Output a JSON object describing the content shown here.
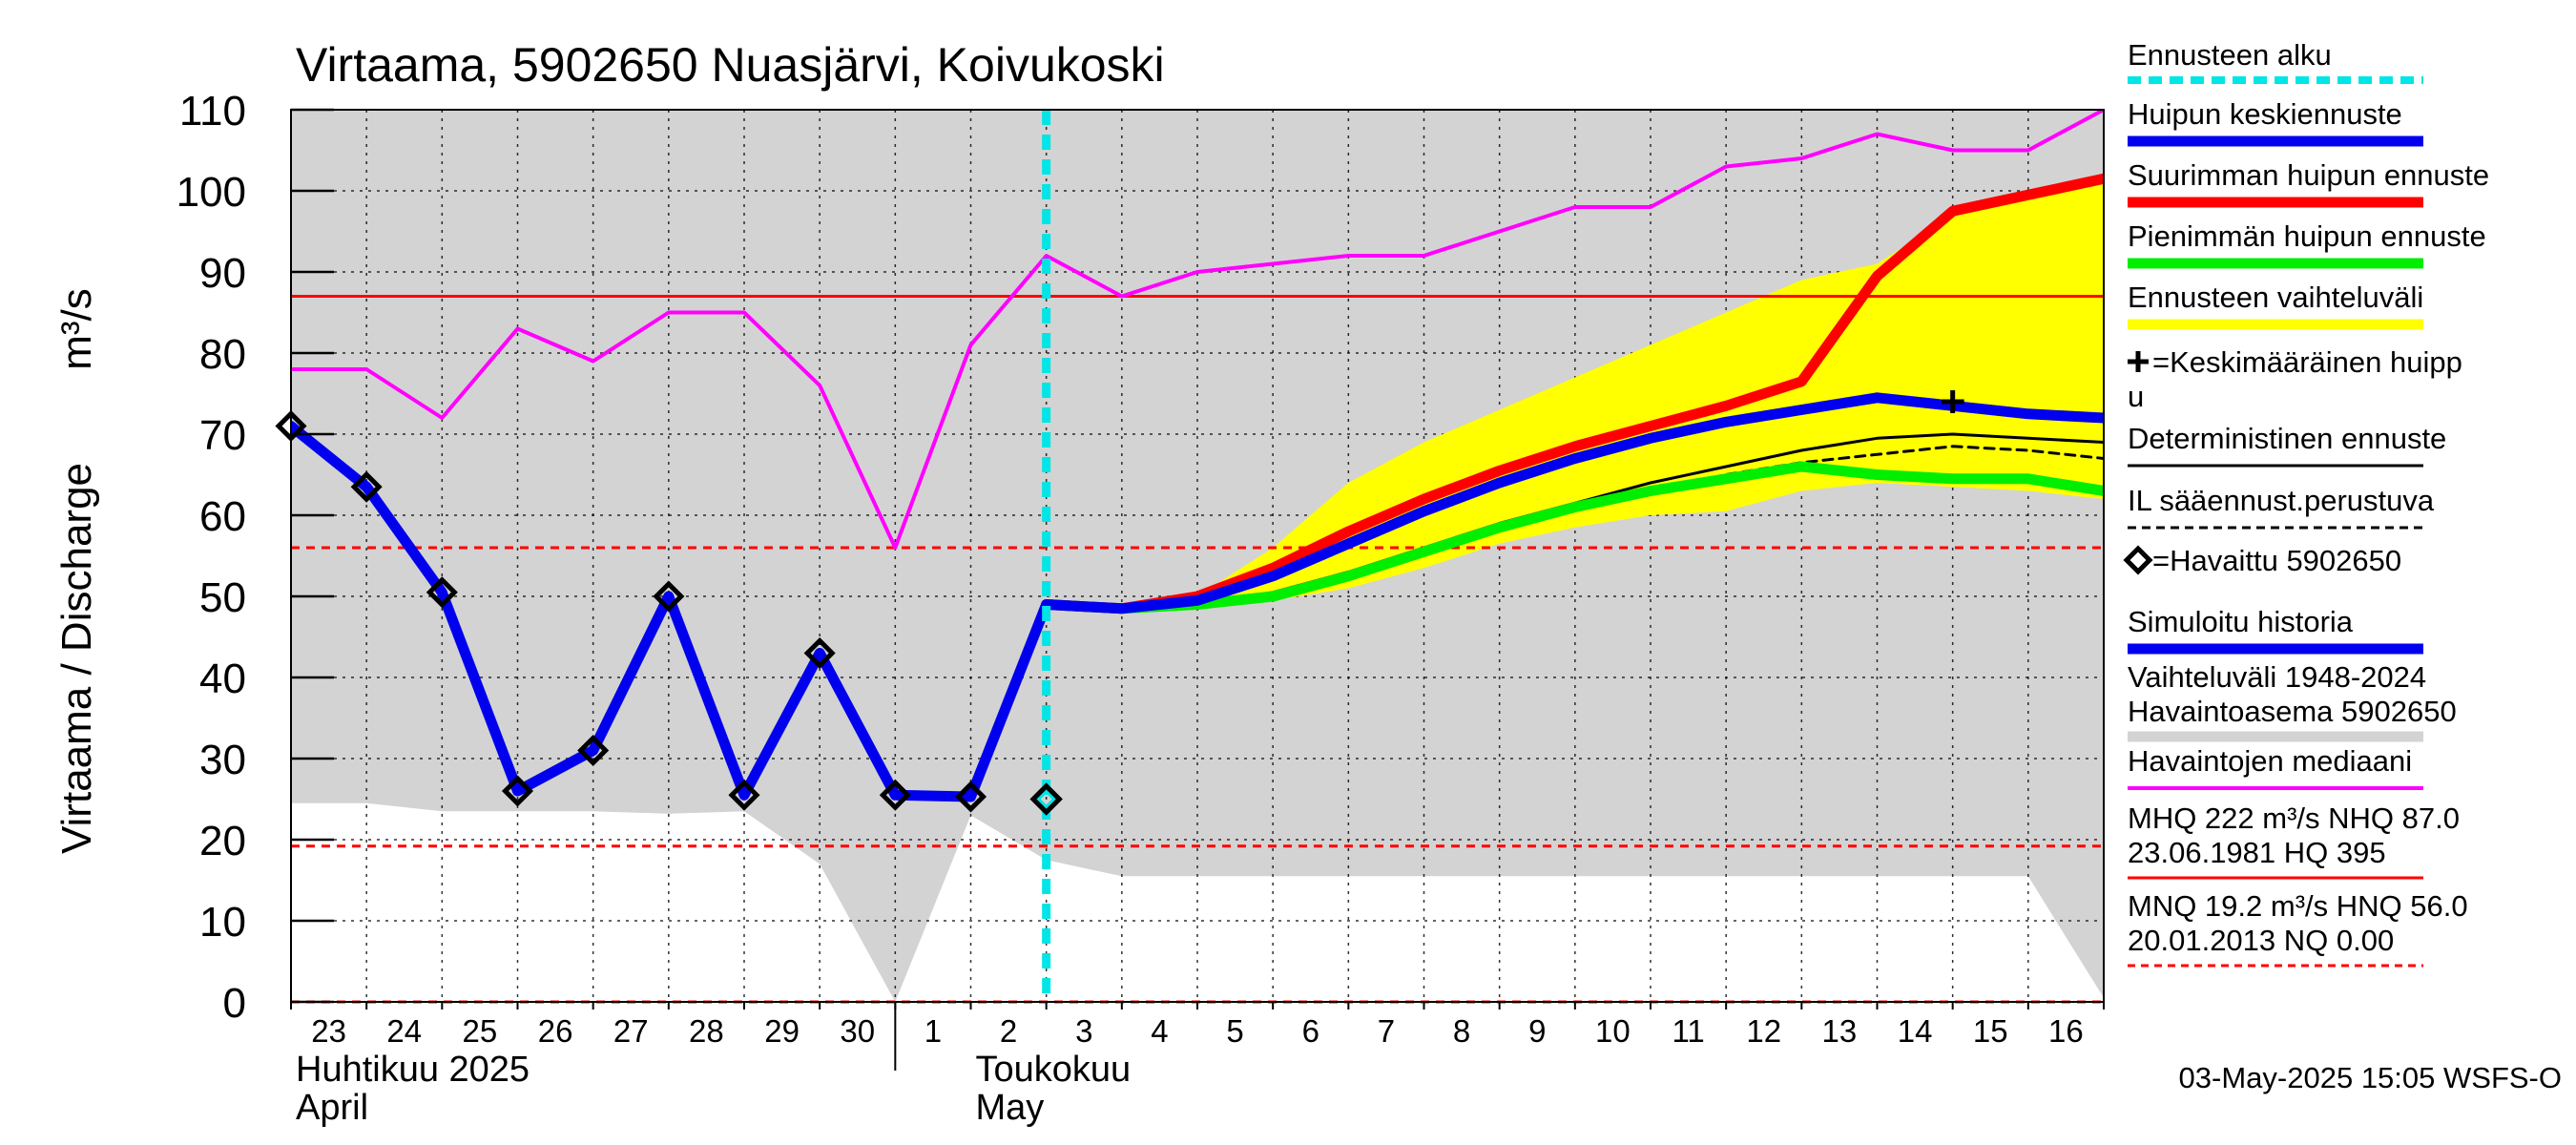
{
  "chart_data": {
    "type": "line",
    "title": "Virtaama, 5902650 Nuasjärvi, Koivukoski",
    "ylabel": "Virtaama / Discharge",
    "yunit": "m³/s",
    "ylim": [
      0,
      110
    ],
    "yticks": [
      0,
      10,
      20,
      30,
      40,
      50,
      60,
      70,
      80,
      90,
      100,
      110
    ],
    "xlim": [
      "2025-04-23",
      "2025-05-17"
    ],
    "day_labels": [
      {
        "date": "2025-04-23",
        "label": "23"
      },
      {
        "date": "2025-04-24",
        "label": "24"
      },
      {
        "date": "2025-04-25",
        "label": "25"
      },
      {
        "date": "2025-04-26",
        "label": "26"
      },
      {
        "date": "2025-04-27",
        "label": "27"
      },
      {
        "date": "2025-04-28",
        "label": "28"
      },
      {
        "date": "2025-04-29",
        "label": "29"
      },
      {
        "date": "2025-04-30",
        "label": "30"
      },
      {
        "date": "2025-05-01",
        "label": "1"
      },
      {
        "date": "2025-05-02",
        "label": "2"
      },
      {
        "date": "2025-05-03",
        "label": "3"
      },
      {
        "date": "2025-05-04",
        "label": "4"
      },
      {
        "date": "2025-05-05",
        "label": "5"
      },
      {
        "date": "2025-05-06",
        "label": "6"
      },
      {
        "date": "2025-05-07",
        "label": "7"
      },
      {
        "date": "2025-05-08",
        "label": "8"
      },
      {
        "date": "2025-05-09",
        "label": "9"
      },
      {
        "date": "2025-05-10",
        "label": "10"
      },
      {
        "date": "2025-05-11",
        "label": "11"
      },
      {
        "date": "2025-05-12",
        "label": "12"
      },
      {
        "date": "2025-05-13",
        "label": "13"
      },
      {
        "date": "2025-05-14",
        "label": "14"
      },
      {
        "date": "2025-05-15",
        "label": "15"
      },
      {
        "date": "2025-05-16",
        "label": "16"
      }
    ],
    "month_labels": [
      {
        "date": "2025-04-23",
        "line1": "Huhtikuu  2025",
        "line2": "April"
      },
      {
        "date": "2025-05-01",
        "line1": "Toukokuu",
        "line2": "May",
        "offset_days": 1
      }
    ],
    "month_separator": "2025-05-01",
    "forecast_start": "2025-05-03",
    "reference_lines": [
      {
        "value": 87.0,
        "color": "#ff0000",
        "dashed": false
      },
      {
        "value": 56.0,
        "color": "#ff0000",
        "dashed": true
      },
      {
        "value": 19.2,
        "color": "#ff0000",
        "dashed": true
      },
      {
        "value": 0.0,
        "color": "#ff0000",
        "dashed": true
      }
    ],
    "historical_range": {
      "color": "#d3d3d3",
      "upper_value": 110,
      "lower": [
        [
          "2025-04-23",
          24.5
        ],
        [
          "2025-04-24",
          24.5
        ],
        [
          "2025-04-25",
          23.5
        ],
        [
          "2025-04-26",
          23.5
        ],
        [
          "2025-04-27",
          23.5
        ],
        [
          "2025-04-28",
          23.2
        ],
        [
          "2025-04-29",
          23.5
        ],
        [
          "2025-04-30",
          17.0
        ],
        [
          "2025-05-01",
          0.0
        ],
        [
          "2025-05-02",
          23.0
        ],
        [
          "2025-05-03",
          17.5
        ],
        [
          "2025-05-04",
          15.5
        ],
        [
          "2025-05-05",
          15.5
        ],
        [
          "2025-05-06",
          15.5
        ],
        [
          "2025-05-07",
          15.5
        ],
        [
          "2025-05-08",
          15.5
        ],
        [
          "2025-05-09",
          15.5
        ],
        [
          "2025-05-10",
          15.5
        ],
        [
          "2025-05-11",
          15.5
        ],
        [
          "2025-05-12",
          15.5
        ],
        [
          "2025-05-13",
          15.5
        ],
        [
          "2025-05-14",
          15.5
        ],
        [
          "2025-05-15",
          15.5
        ],
        [
          "2025-05-16",
          15.5
        ],
        [
          "2025-05-17",
          0.5
        ]
      ]
    },
    "forecast_band": {
      "color": "#ffff00",
      "upper": [
        [
          "2025-05-03",
          49
        ],
        [
          "2025-05-04",
          48.5
        ],
        [
          "2025-05-05",
          50
        ],
        [
          "2025-05-06",
          56
        ],
        [
          "2025-05-07",
          64
        ],
        [
          "2025-05-08",
          69
        ],
        [
          "2025-05-09",
          73
        ],
        [
          "2025-05-10",
          77
        ],
        [
          "2025-05-11",
          81
        ],
        [
          "2025-05-12",
          85
        ],
        [
          "2025-05-13",
          89
        ],
        [
          "2025-05-14",
          91
        ],
        [
          "2025-05-15",
          97
        ],
        [
          "2025-05-16",
          99
        ],
        [
          "2025-05-17",
          101
        ]
      ],
      "lower": [
        [
          "2025-05-03",
          49
        ],
        [
          "2025-05-04",
          48.3
        ],
        [
          "2025-05-05",
          49
        ],
        [
          "2025-05-06",
          49.5
        ],
        [
          "2025-05-07",
          51
        ],
        [
          "2025-05-08",
          53.5
        ],
        [
          "2025-05-09",
          56.5
        ],
        [
          "2025-05-10",
          58.5
        ],
        [
          "2025-05-11",
          60
        ],
        [
          "2025-05-12",
          60.5
        ],
        [
          "2025-05-13",
          63
        ],
        [
          "2025-05-14",
          64
        ],
        [
          "2025-05-15",
          63.5
        ],
        [
          "2025-05-16",
          63
        ],
        [
          "2025-05-17",
          62
        ]
      ]
    },
    "series": [
      {
        "name": "Havaintojen mediaani",
        "color": "#ff00ff",
        "width": 4,
        "points": [
          [
            "2025-04-23",
            78
          ],
          [
            "2025-04-24",
            78
          ],
          [
            "2025-04-25",
            72
          ],
          [
            "2025-04-26",
            83
          ],
          [
            "2025-04-27",
            79
          ],
          [
            "2025-04-28",
            85
          ],
          [
            "2025-04-29",
            85
          ],
          [
            "2025-04-30",
            76
          ],
          [
            "2025-05-01",
            56
          ],
          [
            "2025-05-02",
            81
          ],
          [
            "2025-05-03",
            92
          ],
          [
            "2025-05-04",
            87
          ],
          [
            "2025-05-05",
            90
          ],
          [
            "2025-05-06",
            91
          ],
          [
            "2025-05-07",
            92
          ],
          [
            "2025-05-08",
            92
          ],
          [
            "2025-05-09",
            95
          ],
          [
            "2025-05-10",
            98
          ],
          [
            "2025-05-11",
            98
          ],
          [
            "2025-05-12",
            103
          ],
          [
            "2025-05-13",
            104
          ],
          [
            "2025-05-14",
            107
          ],
          [
            "2025-05-15",
            105
          ],
          [
            "2025-05-16",
            105
          ],
          [
            "2025-05-17",
            110
          ]
        ]
      },
      {
        "name": "Simuloitu historia",
        "color": "#0000ee",
        "width": 11,
        "points": [
          [
            "2025-04-23",
            71
          ],
          [
            "2025-04-24",
            63.5
          ],
          [
            "2025-04-25",
            50.5
          ],
          [
            "2025-04-26",
            26
          ],
          [
            "2025-04-27",
            31
          ],
          [
            "2025-04-28",
            50
          ],
          [
            "2025-04-29",
            25.5
          ],
          [
            "2025-04-30",
            43
          ],
          [
            "2025-05-01",
            25.5
          ],
          [
            "2025-05-02",
            25.3
          ],
          [
            "2025-05-03",
            49
          ]
        ]
      },
      {
        "name": "Suurimman huipun ennuste",
        "color": "#ff0000",
        "width": 11,
        "points": [
          [
            "2025-05-03",
            49
          ],
          [
            "2025-05-04",
            48.5
          ],
          [
            "2025-05-05",
            50
          ],
          [
            "2025-05-06",
            53.5
          ],
          [
            "2025-05-07",
            58
          ],
          [
            "2025-05-08",
            62
          ],
          [
            "2025-05-09",
            65.5
          ],
          [
            "2025-05-10",
            68.5
          ],
          [
            "2025-05-11",
            71
          ],
          [
            "2025-05-12",
            73.5
          ],
          [
            "2025-05-13",
            76.5
          ],
          [
            "2025-05-14",
            89.5
          ],
          [
            "2025-05-15",
            97.5
          ],
          [
            "2025-05-16",
            99.5
          ],
          [
            "2025-05-17",
            101.5
          ]
        ]
      },
      {
        "name": "Pienimmän huipun ennuste",
        "color": "#00ee00",
        "width": 11,
        "points": [
          [
            "2025-05-03",
            49
          ],
          [
            "2025-05-04",
            48.5
          ],
          [
            "2025-05-05",
            49
          ],
          [
            "2025-05-06",
            50
          ],
          [
            "2025-05-07",
            52.5
          ],
          [
            "2025-05-08",
            55.5
          ],
          [
            "2025-05-09",
            58.5
          ],
          [
            "2025-05-10",
            61
          ],
          [
            "2025-05-11",
            63
          ],
          [
            "2025-05-12",
            64.5
          ],
          [
            "2025-05-13",
            66
          ],
          [
            "2025-05-14",
            65
          ],
          [
            "2025-05-15",
            64.5
          ],
          [
            "2025-05-16",
            64.5
          ],
          [
            "2025-05-17",
            63
          ]
        ]
      },
      {
        "name": "Huipun keskiennuste",
        "color": "#0000ee",
        "width": 11,
        "points": [
          [
            "2025-05-03",
            49
          ],
          [
            "2025-05-04",
            48.5
          ],
          [
            "2025-05-05",
            49.5
          ],
          [
            "2025-05-06",
            52.5
          ],
          [
            "2025-05-07",
            56.5
          ],
          [
            "2025-05-08",
            60.5
          ],
          [
            "2025-05-09",
            64
          ],
          [
            "2025-05-10",
            67
          ],
          [
            "2025-05-11",
            69.5
          ],
          [
            "2025-05-12",
            71.5
          ],
          [
            "2025-05-13",
            73
          ],
          [
            "2025-05-14",
            74.5
          ],
          [
            "2025-05-15",
            73.5
          ],
          [
            "2025-05-16",
            72.5
          ],
          [
            "2025-05-17",
            72
          ]
        ]
      },
      {
        "name": "Deterministinen ennuste",
        "color": "#000000",
        "width": 3,
        "points": [
          [
            "2025-05-03",
            49
          ],
          [
            "2025-05-04",
            48.5
          ],
          [
            "2025-05-05",
            49
          ],
          [
            "2025-05-06",
            50.5
          ],
          [
            "2025-05-07",
            53
          ],
          [
            "2025-05-08",
            56
          ],
          [
            "2025-05-09",
            59
          ],
          [
            "2025-05-10",
            61.5
          ],
          [
            "2025-05-11",
            64
          ],
          [
            "2025-05-12",
            66
          ],
          [
            "2025-05-13",
            68
          ],
          [
            "2025-05-14",
            69.5
          ],
          [
            "2025-05-15",
            70
          ],
          [
            "2025-05-16",
            69.5
          ],
          [
            "2025-05-17",
            69
          ]
        ]
      },
      {
        "name": "IL sääennust.perustuva",
        "color": "#000000",
        "width": 3,
        "dashed": true,
        "points": [
          [
            "2025-05-03",
            49
          ],
          [
            "2025-05-04",
            48.5
          ],
          [
            "2025-05-05",
            49
          ],
          [
            "2025-05-06",
            50.3
          ],
          [
            "2025-05-07",
            52.5
          ],
          [
            "2025-05-08",
            55.5
          ],
          [
            "2025-05-09",
            58.5
          ],
          [
            "2025-05-10",
            61
          ],
          [
            "2025-05-11",
            63
          ],
          [
            "2025-05-12",
            65
          ],
          [
            "2025-05-13",
            66.5
          ],
          [
            "2025-05-14",
            67.5
          ],
          [
            "2025-05-15",
            68.5
          ],
          [
            "2025-05-16",
            68
          ],
          [
            "2025-05-17",
            67
          ]
        ]
      }
    ],
    "observed": {
      "name": "Havaittu 5902650",
      "points": [
        [
          "2025-04-23",
          71
        ],
        [
          "2025-04-24",
          63.5
        ],
        [
          "2025-04-25",
          50.5
        ],
        [
          "2025-04-26",
          26
        ],
        [
          "2025-04-27",
          31
        ],
        [
          "2025-04-28",
          50
        ],
        [
          "2025-04-29",
          25.5
        ],
        [
          "2025-04-30",
          43
        ],
        [
          "2025-05-01",
          25.5
        ],
        [
          "2025-05-02",
          25.3
        ]
      ],
      "last_point": [
        "2025-05-03",
        25
      ]
    },
    "mean_peak": {
      "date": "2025-05-15",
      "value": 74
    }
  },
  "legend": {
    "items": [
      {
        "label": "Ennusteen alku",
        "sample": "cyan-dashed"
      },
      {
        "label": "Huipun keskiennuste",
        "sample": "blue"
      },
      {
        "label": "Suurimman huipun ennuste",
        "sample": "red"
      },
      {
        "label": "Pienimmän huipun ennuste",
        "sample": "green"
      },
      {
        "label": "Ennusteen vaihteluväli",
        "sample": "yellow"
      },
      {
        "label": "=Keskimääräinen huipp",
        "label2": "u",
        "sample": "plus"
      },
      {
        "label": "Deterministinen ennuste",
        "sample": "black"
      },
      {
        "label": "IL sääennust.perustuva",
        "sample": "black-dashed"
      },
      {
        "label": "=Havaittu 5902650",
        "sample": "diamond"
      },
      {
        "label": "Simuloitu historia",
        "sample": "blue"
      },
      {
        "label": "Vaihteluväli 1948-2024",
        "label2": " Havaintoasema 5902650",
        "sample": "grey"
      },
      {
        "label": "Havaintojen mediaani",
        "sample": "magenta"
      },
      {
        "label": "MHQ  222 m³/s NHQ 87.0",
        "label2": "23.06.1981 HQ  395",
        "sample": "red"
      },
      {
        "label": "MNQ 19.2 m³/s HNQ 56.0",
        "label2": "20.01.2013 NQ 0.00",
        "sample": "red-dashed"
      }
    ]
  },
  "colors": {
    "cyan": "#00e5e5",
    "blue": "#0000ee",
    "red": "#ff0000",
    "green": "#00ee00",
    "yellow": "#ffff00",
    "magenta": "#ff00ff",
    "grey": "#d3d3d3",
    "black": "#000000"
  },
  "footer": "03-May-2025 15:05 WSFS-O"
}
